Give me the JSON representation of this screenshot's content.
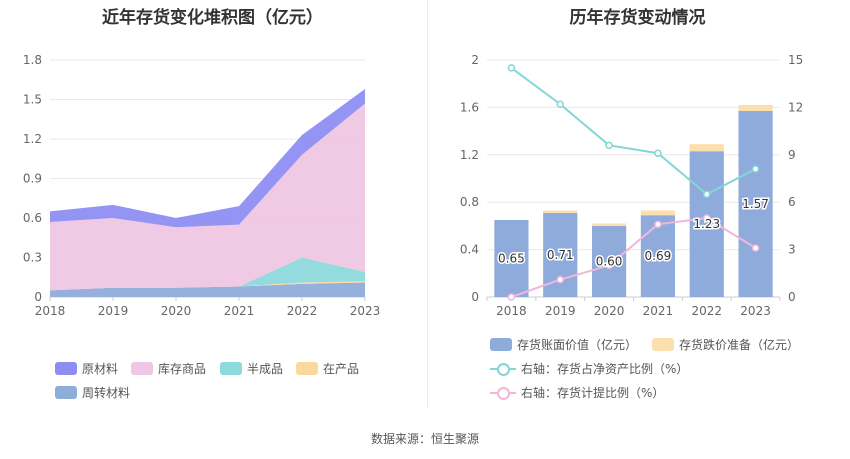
{
  "source": "数据来源：恒生聚源",
  "chart_data": [
    {
      "type": "area",
      "title": "近年存货变化堆积图（亿元）",
      "x": [
        "2018",
        "2019",
        "2020",
        "2021",
        "2022",
        "2023"
      ],
      "ylim": [
        0,
        1.8
      ],
      "yticks": [
        "0",
        "0.3",
        "0.6",
        "0.9",
        "1.2",
        "1.5",
        "1.8"
      ],
      "stacked": true,
      "grid": true,
      "legend_position": "bottom",
      "series": [
        {
          "name": "周转材料",
          "color": "#8fadd9",
          "values": [
            0.05,
            0.07,
            0.07,
            0.08,
            0.1,
            0.11
          ]
        },
        {
          "name": "在产品",
          "color": "#fbd99e",
          "values": [
            0.0,
            0.0,
            0.0,
            0.0,
            0.01,
            0.01
          ]
        },
        {
          "name": "半成品",
          "color": "#8dd9dc",
          "values": [
            0.0,
            0.0,
            0.0,
            0.0,
            0.19,
            0.07
          ]
        },
        {
          "name": "库存商品",
          "color": "#efc6e3",
          "values": [
            0.52,
            0.53,
            0.46,
            0.47,
            0.78,
            1.28
          ]
        },
        {
          "name": "原材料",
          "color": "#8d8ef2",
          "values": [
            0.08,
            0.1,
            0.07,
            0.14,
            0.15,
            0.11
          ]
        }
      ],
      "legend_order": [
        "原材料",
        "库存商品",
        "半成品",
        "在产品",
        "周转材料"
      ]
    },
    {
      "type": "bar",
      "title": "历年存货变动情况",
      "x": [
        "2018",
        "2019",
        "2020",
        "2021",
        "2022",
        "2023"
      ],
      "ylim_left": [
        0,
        2
      ],
      "yticks_left": [
        "0",
        "0.4",
        "0.8",
        "1.2",
        "1.6",
        "2"
      ],
      "ylim_right": [
        0,
        15
      ],
      "yticks_right": [
        "0",
        "3",
        "6",
        "9",
        "12",
        "15"
      ],
      "grid": true,
      "legend_position": "bottom",
      "series": [
        {
          "name": "存货账面价值（亿元）",
          "kind": "bar",
          "axis": "left",
          "color": "#8eabdb",
          "values": [
            0.65,
            0.71,
            0.6,
            0.69,
            1.23,
            1.57
          ],
          "labels": [
            "0.65",
            "0.71",
            "0.60",
            "0.69",
            "1.23",
            "1.57"
          ]
        },
        {
          "name": "存货跌价准备（亿元）",
          "kind": "bar",
          "axis": "left",
          "color": "#fbdfad",
          "stacked": true,
          "values": [
            0.0,
            0.02,
            0.02,
            0.04,
            0.06,
            0.05
          ]
        },
        {
          "name": "右轴：存货占净资产比例（%）",
          "kind": "line",
          "axis": "right",
          "color": "#84d6d6",
          "values": [
            14.5,
            12.2,
            9.6,
            9.1,
            6.5,
            8.1
          ]
        },
        {
          "name": "右轴：存货计提比例（%）",
          "kind": "line",
          "axis": "right",
          "color": "#f0b7db",
          "values": [
            0.0,
            1.1,
            2.0,
            4.6,
            5.0,
            3.1
          ]
        }
      ]
    }
  ]
}
